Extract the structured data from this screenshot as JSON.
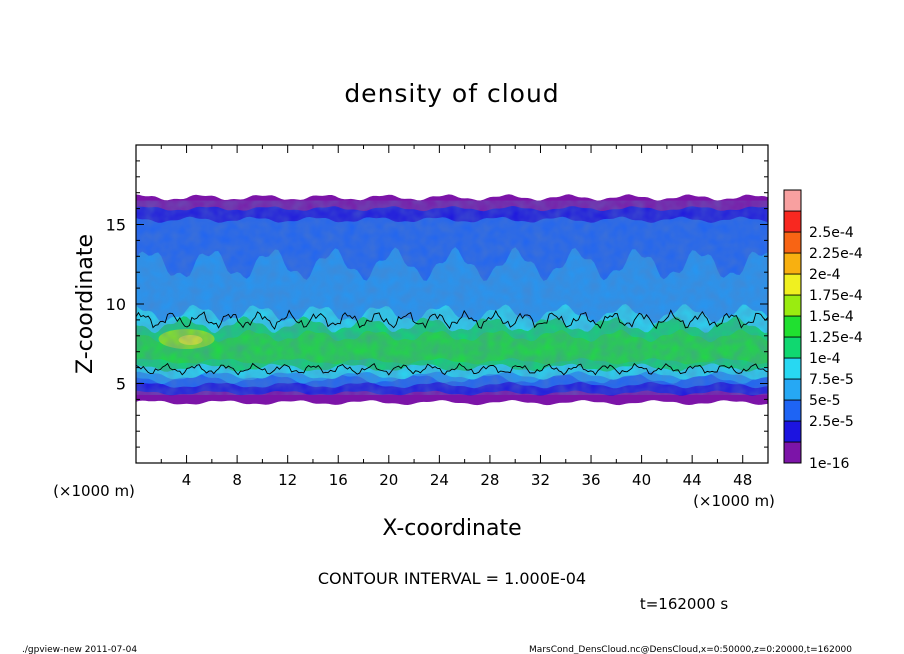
{
  "chart_data": {
    "type": "heatmap",
    "title": "density of cloud",
    "xlabel": "X-coordinate",
    "ylabel": "Z-coordinate",
    "x_unit": "(×1000 m)",
    "y_unit": "(×1000 m)",
    "xlim": [
      0,
      50
    ],
    "ylim": [
      0,
      20
    ],
    "x_ticks": [
      "4",
      "8",
      "12",
      "16",
      "20",
      "24",
      "28",
      "32",
      "36",
      "40",
      "44",
      "48"
    ],
    "y_ticks": [
      "5",
      "10",
      "15"
    ],
    "colorbar": {
      "labels": [
        "1e-16",
        "2.5e-5",
        "5e-5",
        "7.5e-5",
        "1e-4",
        "1.25e-4",
        "1.5e-4",
        "1.75e-4",
        "2e-4",
        "2.25e-4",
        "2.5e-4"
      ],
      "colors": [
        "#7c14a8",
        "#1c14e0",
        "#1e64f4",
        "#26a8f4",
        "#28d8f2",
        "#10d870",
        "#20e030",
        "#9aec10",
        "#f0f020",
        "#f8b010",
        "#f86414",
        "#f82820",
        "#f8a0a0"
      ]
    },
    "contour_levels": [
      "1e-4"
    ],
    "description_bands": [
      {
        "z_range": [
          4.0,
          4.8
        ],
        "level": "1e-16"
      },
      {
        "z_range": [
          4.8,
          6.0
        ],
        "level": "2.5e-5"
      },
      {
        "z_range": [
          6.0,
          9.0
        ],
        "level": "1.25e-4"
      },
      {
        "z_range": [
          9.0,
          15.0
        ],
        "level": "5e-5"
      },
      {
        "z_range": [
          15.0,
          16.5
        ],
        "level": "1e-16"
      }
    ],
    "peak": {
      "x": 4,
      "z": 7.8,
      "level": "1.75e-4"
    }
  },
  "annotations": {
    "contour_interval": "CONTOUR INTERVAL = 1.000E-04",
    "time": "t=162000 s",
    "footer_left": "./gpview-new  2011-07-04",
    "footer_right": "MarsCond_DensCloud.nc@DensCloud,x=0:50000,z=0:20000,t=162000"
  }
}
